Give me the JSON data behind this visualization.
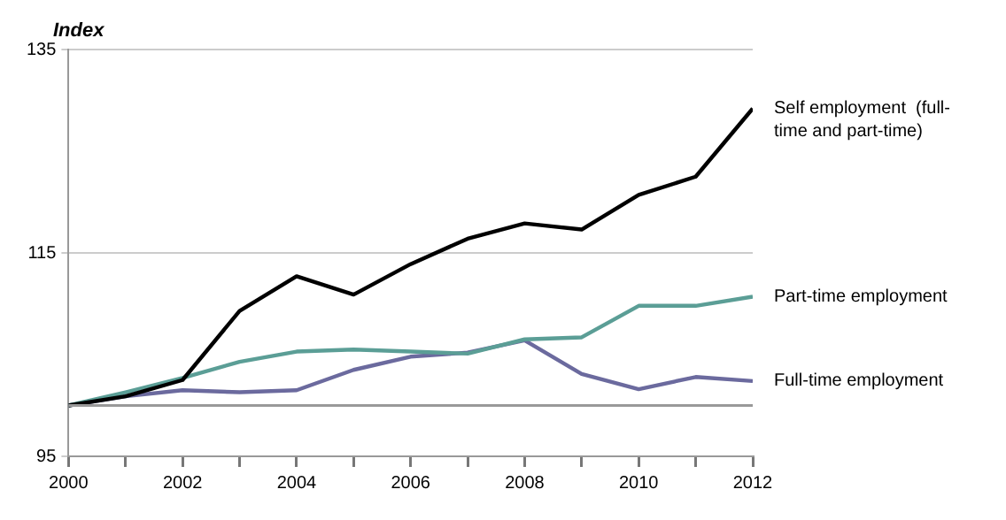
{
  "chart_data": {
    "type": "line",
    "ylabel": "Index",
    "x": [
      2000,
      2001,
      2002,
      2003,
      2004,
      2005,
      2006,
      2007,
      2008,
      2009,
      2010,
      2011,
      2012
    ],
    "series": [
      {
        "name": "Self employment  (full-time and part-time)",
        "color": "#000000",
        "values": [
          100,
          100.9,
          102.5,
          109.3,
          112.7,
          110.9,
          113.9,
          116.4,
          117.9,
          117.3,
          120.7,
          122.5,
          129.2
        ]
      },
      {
        "name": "Part-time employment",
        "color": "#5b9e96",
        "values": [
          100,
          101.3,
          102.7,
          104.3,
          105.3,
          105.5,
          105.3,
          105.1,
          106.5,
          106.7,
          109.8,
          109.8,
          110.7
        ]
      },
      {
        "name": "Full-time employment",
        "color": "#6b6a9e",
        "values": [
          100,
          100.9,
          101.5,
          101.3,
          101.5,
          103.5,
          104.8,
          105.2,
          106.4,
          103.1,
          101.6,
          102.8,
          102.4
        ]
      }
    ],
    "xlim": [
      2000,
      2012
    ],
    "xticks": [
      2000,
      {
        "value": 2001,
        "label": null
      },
      2002,
      {
        "value": 2003,
        "label": null
      },
      2004,
      {
        "value": 2005,
        "label": null
      },
      2006,
      {
        "value": 2007,
        "label": null
      },
      2008,
      {
        "value": 2009,
        "label": null
      },
      2010,
      {
        "value": 2011,
        "label": null
      },
      2012
    ],
    "ylim": [
      95,
      135
    ],
    "yticks": [
      95,
      115,
      135
    ],
    "ref_lines": [
      {
        "axis": "y",
        "value": 100,
        "color": "#999999"
      }
    ],
    "grid": "y",
    "legend": false,
    "marker": "none",
    "line_style": "solid"
  }
}
